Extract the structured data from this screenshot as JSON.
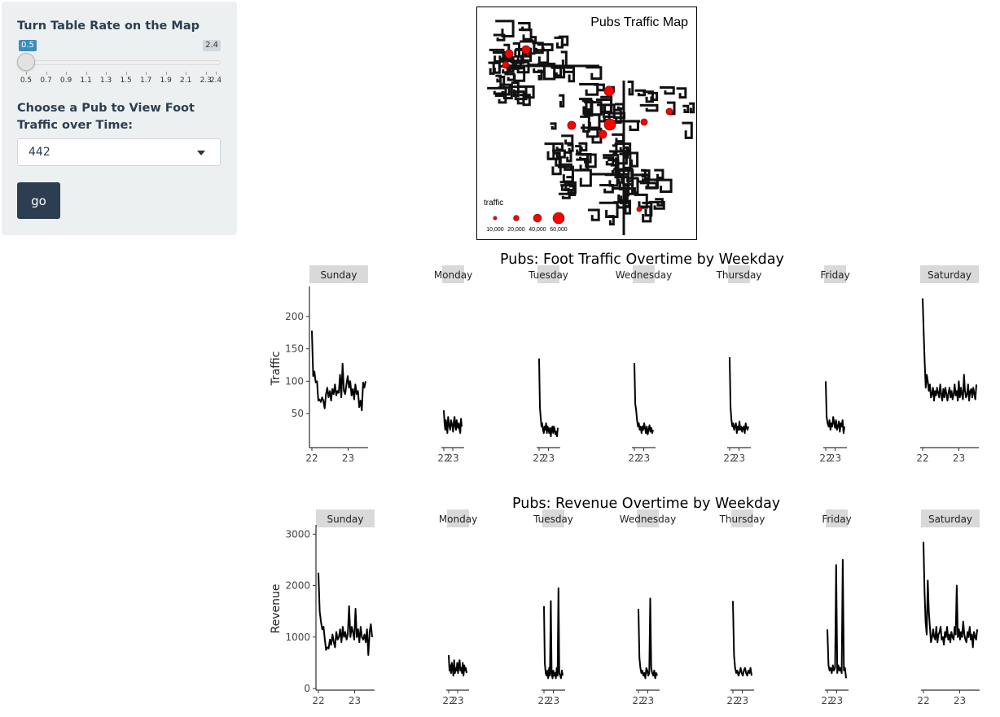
{
  "sidebar": {
    "slider_label": "Turn Table Rate on the Map",
    "slider_min_badge": "0.5",
    "slider_max_badge": "2.4",
    "slider_value": 0.5,
    "slider_ticks": [
      "0.5",
      "0.7",
      "0.9",
      "1.1",
      "1.3",
      "1.5",
      "1.7",
      "1.9",
      "2.1",
      "2.3",
      "2.4"
    ],
    "pub_label": "Choose a Pub to View Foot Traffic over Time:",
    "pub_selected": "442",
    "go_label": "go"
  },
  "map": {
    "title": "Pubs Traffic Map",
    "legend_title": "traffic",
    "legend_labels": [
      "10,000",
      "20,000",
      "40,000",
      "60,000"
    ]
  },
  "colors": {
    "accent": "#3c8dbc",
    "button": "#2c3e50",
    "point": "#ff0000",
    "strip": "#d9d9d9"
  },
  "chart_data": [
    {
      "type": "line",
      "title": "Pubs: Foot Traffic Overtime by Weekday",
      "ylabel": "Traffic",
      "ylim": [
        0,
        240
      ],
      "yticks": [
        50,
        100,
        150,
        200
      ],
      "xticks": [
        "22",
        "23"
      ],
      "facets": [
        {
          "name": "Sunday",
          "values": [
            178,
            108,
            115,
            98,
            100,
            70,
            72,
            68,
            75,
            70,
            58,
            80,
            90,
            75,
            85,
            70,
            88,
            80,
            95,
            78,
            85,
            82,
            110,
            75,
            127,
            85,
            80,
            95,
            108,
            90,
            100,
            78,
            88,
            72,
            95,
            80,
            85,
            60,
            70,
            55,
            98,
            90,
            100
          ]
        },
        {
          "name": "Monday",
          "values": [
            55,
            35,
            25,
            40,
            30,
            20,
            45,
            35,
            30,
            25,
            40,
            35,
            30,
            22,
            38,
            45,
            30,
            25,
            40,
            30,
            28,
            35,
            25,
            20,
            42,
            30
          ]
        },
        {
          "name": "Tuesday",
          "values": [
            135,
            60,
            45,
            30,
            35,
            25,
            20,
            30,
            25,
            35,
            20,
            30,
            25,
            20,
            28,
            15,
            25,
            30,
            20,
            30,
            25,
            18,
            22,
            15,
            28
          ]
        },
        {
          "name": "Wednesday",
          "values": [
            128,
            65,
            55,
            40,
            30,
            35,
            25,
            30,
            20,
            30,
            25,
            35,
            28,
            20,
            30,
            18,
            25,
            32,
            22,
            28,
            20,
            25
          ]
        },
        {
          "name": "Thursday",
          "values": [
            137,
            60,
            40,
            30,
            35,
            25,
            30,
            35,
            20,
            30,
            25,
            38,
            25,
            30,
            22,
            28,
            30,
            20,
            35,
            28,
            25,
            30
          ]
        },
        {
          "name": "Friday",
          "values": [
            100,
            45,
            35,
            30,
            40,
            25,
            35,
            30,
            45,
            35,
            28,
            40,
            25,
            30,
            38,
            22,
            35,
            30,
            40,
            20,
            30
          ]
        },
        {
          "name": "Saturday",
          "values": [
            228,
            175,
            130,
            90,
            110,
            100,
            85,
            95,
            75,
            80,
            90,
            70,
            85,
            78,
            90,
            82,
            75,
            95,
            80,
            70,
            88,
            75,
            90,
            80,
            70,
            82,
            90,
            75,
            85,
            72,
            80,
            95,
            78,
            85,
            70,
            100,
            75,
            90,
            80,
            72,
            110,
            85,
            75,
            80,
            95,
            70,
            85,
            88,
            75,
            90,
            80,
            72,
            95
          ]
        }
      ]
    },
    {
      "type": "line",
      "title": "Pubs: Revenue Overtime by Weekday",
      "ylabel": "Revenue",
      "ylim": [
        0,
        3100
      ],
      "yticks": [
        0,
        1000,
        2000,
        3000
      ],
      "xticks": [
        "22",
        "23"
      ],
      "facets": [
        {
          "name": "Sunday",
          "values": [
            2250,
            1500,
            1300,
            1150,
            1200,
            950,
            750,
            800,
            780,
            950,
            850,
            1050,
            900,
            800,
            1100,
            950,
            1000,
            1150,
            900,
            1200,
            1000,
            1100,
            950,
            1050,
            1600,
            1000,
            1200,
            1100,
            950,
            1550,
            1000,
            1150,
            900,
            1200,
            1000,
            950,
            1050,
            900,
            1150,
            650,
            1100,
            1250,
            1000
          ]
        },
        {
          "name": "Monday",
          "values": [
            650,
            350,
            450,
            300,
            500,
            400,
            250,
            550,
            300,
            400,
            350,
            500,
            300,
            450,
            550,
            350,
            400,
            300,
            500,
            250,
            450,
            350,
            400,
            300
          ]
        },
        {
          "name": "Tuesday",
          "values": [
            1600,
            500,
            300,
            250,
            350,
            200,
            400,
            250,
            1700,
            300,
            200,
            350,
            250,
            300,
            200,
            400,
            250,
            1950,
            300,
            250,
            200,
            350,
            250
          ]
        },
        {
          "name": "Wednesday",
          "values": [
            1550,
            600,
            400,
            300,
            350,
            250,
            300,
            200,
            400,
            350,
            250,
            300,
            1750,
            400,
            300,
            250,
            350,
            200,
            300,
            250
          ]
        },
        {
          "name": "Thursday",
          "values": [
            1700,
            650,
            400,
            300,
            350,
            250,
            300,
            400,
            300,
            250,
            350,
            400,
            300,
            250,
            350,
            300,
            400,
            250
          ]
        },
        {
          "name": "Friday",
          "values": [
            1150,
            450,
            350,
            400,
            300,
            450,
            350,
            400,
            2400,
            300,
            450,
            350,
            400,
            300,
            2500,
            350,
            400,
            200
          ]
        },
        {
          "name": "Saturday",
          "values": [
            2850,
            1900,
            1300,
            1050,
            2100,
            1500,
            1200,
            900,
            1000,
            1150,
            1000,
            950,
            1200,
            900,
            1050,
            1100,
            1200,
            950,
            1000,
            850,
            1100,
            1000,
            1200,
            950,
            1050,
            900,
            1100,
            1000,
            950,
            1200,
            1050,
            2000,
            1000,
            1150,
            950,
            1100,
            1000,
            1300,
            1050,
            950,
            900,
            1100,
            1000,
            1200,
            950,
            1050,
            800,
            1100,
            1000,
            950,
            1150
          ]
        }
      ]
    }
  ]
}
